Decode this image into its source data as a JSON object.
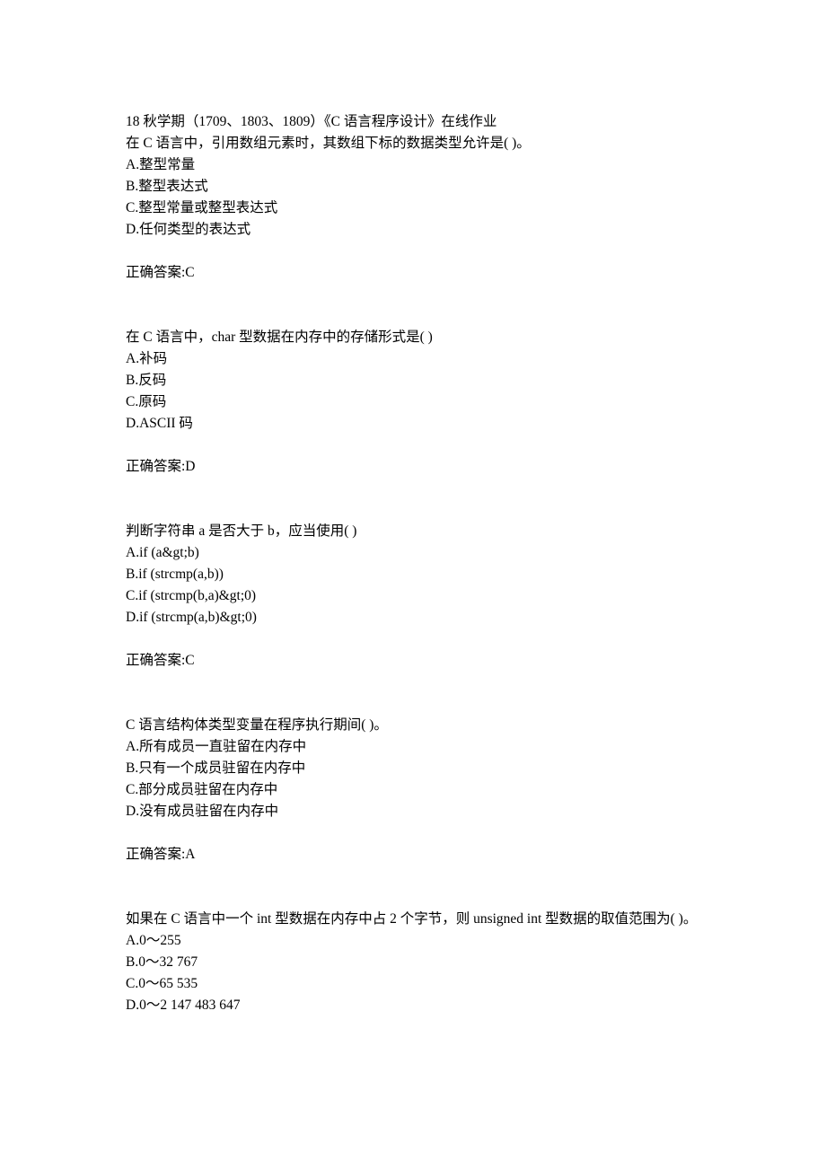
{
  "header": "18 秋学期（1709、1803、1809）《C 语言程序设计》在线作业",
  "questions": [
    {
      "prompt": "在 C 语言中，引用数组元素时，其数组下标的数据类型允许是( )。",
      "options": [
        "A.整型常量",
        "B.整型表达式",
        "C.整型常量或整型表达式",
        "D.任何类型的表达式"
      ],
      "answer": "正确答案:C"
    },
    {
      "prompt": "在 C 语言中，char 型数据在内存中的存储形式是( )",
      "options": [
        "A.补码",
        "B.反码",
        "C.原码",
        "D.ASCII 码"
      ],
      "answer": "正确答案:D"
    },
    {
      "prompt": "判断字符串 a 是否大于 b，应当使用( )",
      "options": [
        "A.if (a&gt;b)",
        "B.if (strcmp(a,b))",
        "C.if (strcmp(b,a)&gt;0)",
        "D.if (strcmp(a,b)&gt;0)"
      ],
      "answer": "正确答案:C"
    },
    {
      "prompt": "C 语言结构体类型变量在程序执行期间( )。",
      "options": [
        "A.所有成员一直驻留在内存中",
        "B.只有一个成员驻留在内存中",
        "C.部分成员驻留在内存中",
        "D.没有成员驻留在内存中"
      ],
      "answer": "正确答案:A"
    },
    {
      "prompt": "如果在 C 语言中一个 int 型数据在内存中占 2 个字节，则 unsigned int 型数据的取值范围为( )。",
      "options": [
        "A.0～255",
        "B.0～32 767",
        "C.0～65 535",
        "D.0～2 147 483 647"
      ],
      "answer": ""
    }
  ]
}
